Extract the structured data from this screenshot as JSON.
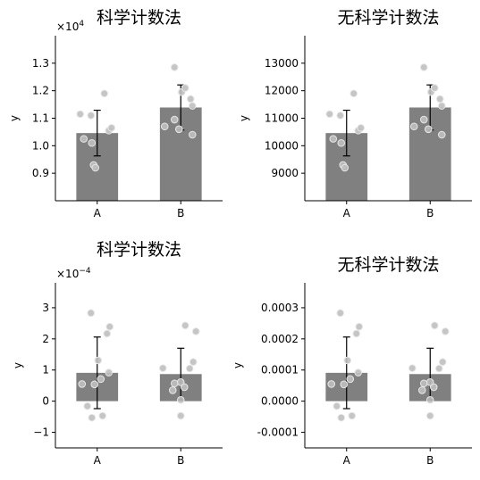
{
  "chart_data": [
    {
      "type": "bar",
      "title": "科学计数法",
      "ylabel": "y",
      "categories": [
        "A",
        "B"
      ],
      "values": [
        10460,
        11390
      ],
      "errors": [
        830,
        820
      ],
      "ylim": [
        8000,
        14000
      ],
      "yticks": [
        9000,
        10000,
        11000,
        12000,
        13000
      ],
      "ytick_labels": [
        "0.9",
        "1.0",
        "1.1",
        "1.2",
        "1.3"
      ],
      "offset_label": {
        "base": "×10",
        "exp": "4"
      },
      "points": [
        [
          11150,
          11100,
          10250,
          10100,
          10550,
          10650,
          9300,
          9200,
          11900
        ],
        [
          12850,
          11950,
          12100,
          11700,
          11450,
          10950,
          10600,
          10700,
          10400
        ]
      ]
    },
    {
      "type": "bar",
      "title": "无科学计数法",
      "ylabel": "y",
      "categories": [
        "A",
        "B"
      ],
      "values": [
        10460,
        11390
      ],
      "errors": [
        830,
        820
      ],
      "ylim": [
        8000,
        14000
      ],
      "yticks": [
        9000,
        10000,
        11000,
        12000,
        13000
      ],
      "ytick_labels": [
        "9000",
        "10000",
        "11000",
        "12000",
        "13000"
      ],
      "points": [
        [
          11150,
          11100,
          10250,
          10100,
          10550,
          10650,
          9300,
          9200,
          11900
        ],
        [
          12850,
          11950,
          12100,
          11700,
          11450,
          10950,
          10600,
          10700,
          10400
        ]
      ]
    },
    {
      "type": "bar",
      "title": "科学计数法",
      "ylabel": "y",
      "categories": [
        "A",
        "B"
      ],
      "values": [
        9.1e-05,
        8.7e-05
      ],
      "errors": [
        0.000115,
        8.3e-05
      ],
      "ylim": [
        -0.00015,
        0.00038
      ],
      "yticks": [
        -0.0001,
        0,
        0.0001,
        0.0002,
        0.0003
      ],
      "ytick_labels": [
        "−1",
        "0",
        "1",
        "2",
        "3"
      ],
      "offset_label": {
        "base": "×10",
        "exp": "−4"
      },
      "points": [
        [
          0.000283,
          0.000239,
          0.000217,
          0.000131,
          9.2e-05,
          7.1e-05,
          5.4e-05,
          -1.6e-05,
          -4.7e-05,
          -5.3e-05,
          5.5e-05
        ],
        [
          0.000243,
          0.000224,
          0.000126,
          0.000105,
          0.000106,
          5.7e-05,
          4.5e-05,
          3.5e-05,
          4e-06,
          -4.7e-05,
          6.1e-05
        ]
      ]
    },
    {
      "type": "bar",
      "title": "无科学计数法",
      "ylabel": "y",
      "categories": [
        "A",
        "B"
      ],
      "values": [
        9.1e-05,
        8.7e-05
      ],
      "errors": [
        0.000115,
        8.3e-05
      ],
      "ylim": [
        -0.00015,
        0.00038
      ],
      "yticks": [
        -0.0001,
        0,
        0.0001,
        0.0002,
        0.0003
      ],
      "ytick_labels": [
        "-0.0001",
        "0.0000",
        "0.0001",
        "0.0002",
        "0.0003"
      ],
      "points": [
        [
          0.000283,
          0.000239,
          0.000217,
          0.000131,
          9.2e-05,
          7.1e-05,
          5.4e-05,
          -1.6e-05,
          -4.7e-05,
          -5.3e-05,
          5.5e-05
        ],
        [
          0.000243,
          0.000224,
          0.000126,
          0.000105,
          0.000106,
          5.7e-05,
          4.5e-05,
          3.5e-05,
          4e-06,
          -4.7e-05,
          6.1e-05
        ]
      ]
    }
  ],
  "colors": {
    "bar": "#808080",
    "points": "#bfbfbf",
    "points_edge": "#e6e6e6",
    "errorbar": "#000000"
  }
}
